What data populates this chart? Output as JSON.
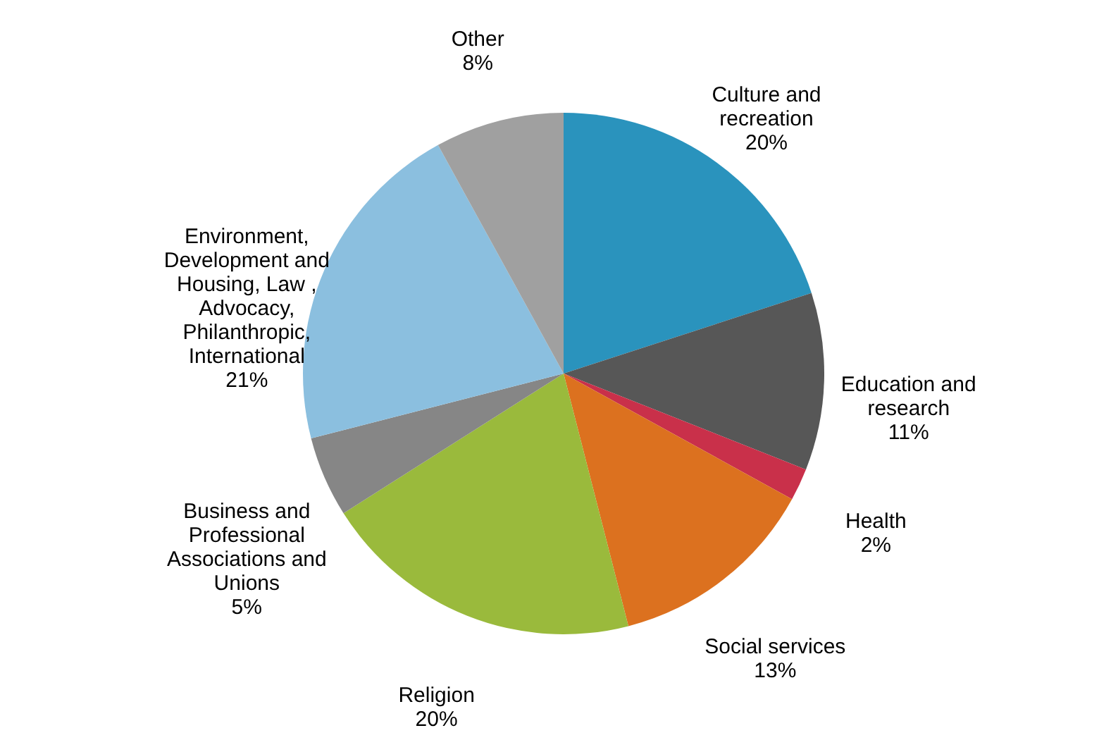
{
  "chart_data": {
    "type": "pie",
    "categories": [
      "Culture and recreation",
      "Education and research",
      "Health",
      "Social services",
      "Religion",
      "Business and Professional Associations and Unions",
      "Environment, Development and Housing, Law , Advocacy, Philanthropic, International",
      "Other"
    ],
    "values": [
      20,
      11,
      2,
      13,
      20,
      5,
      21,
      8
    ],
    "value_labels": [
      "20%",
      "11%",
      "2%",
      "13%",
      "20%",
      "5%",
      "21%",
      "8%"
    ],
    "colors": [
      "#2a93bd",
      "#575757",
      "#c9304a",
      "#dc711f",
      "#9aba3c",
      "#868686",
      "#8bbfdf",
      "#a0a0a0"
    ]
  }
}
